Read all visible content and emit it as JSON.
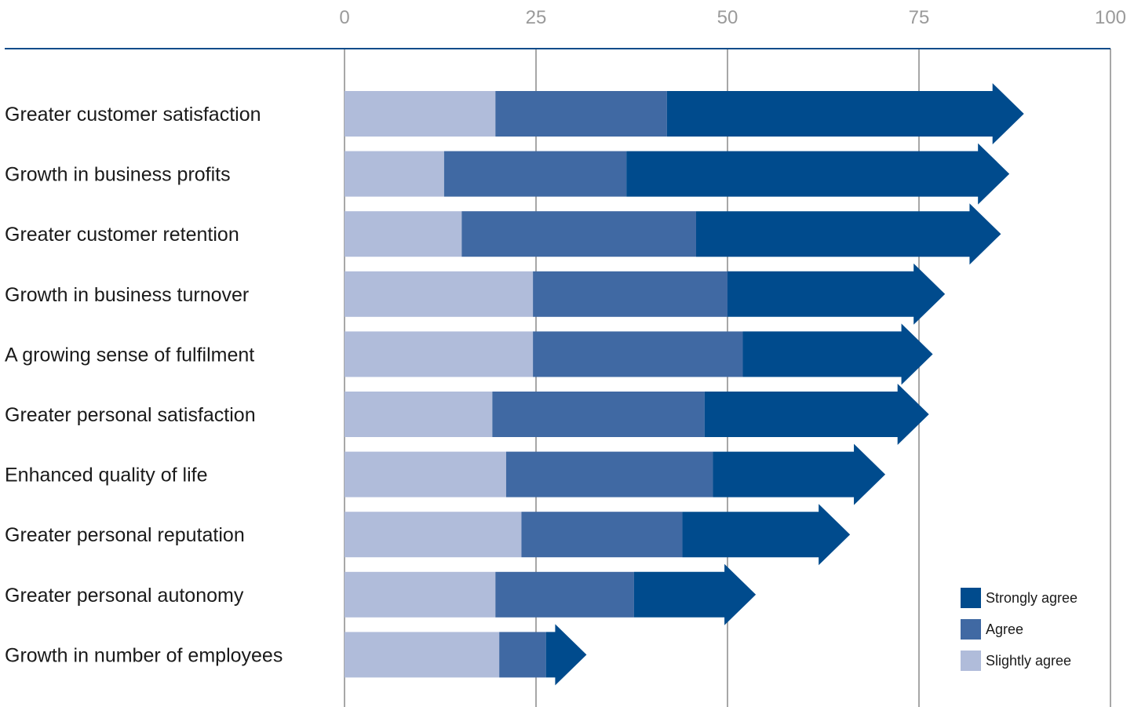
{
  "chart_data": {
    "type": "bar",
    "stacked": true,
    "orientation": "horizontal",
    "xlim": [
      0,
      100
    ],
    "x_ticks": [
      0,
      25,
      50,
      75,
      100
    ],
    "grid": true,
    "legend_position": "bottom-right",
    "categories": [
      "Greater customer satisfaction",
      "Growth in business profits",
      "Greater customer retention",
      "Growth in business turnover",
      "A growing sense of fulfilment",
      "Greater personal satisfaction",
      "Enhanced quality of life",
      "Greater personal reputation",
      "Greater personal autonomy",
      "Growth in number of employees"
    ],
    "series": [
      {
        "name": "Slightly agree",
        "color": "#b0bcda",
        "values": [
          19.7,
          13,
          15.3,
          24.6,
          24.6,
          19.3,
          21.1,
          23.1,
          19.7,
          20.2
        ]
      },
      {
        "name": "Agree",
        "color": "#4069a3",
        "values": [
          22.4,
          23.8,
          30.6,
          25.4,
          27.4,
          27.7,
          27.0,
          21.0,
          18.1,
          6.1
        ]
      },
      {
        "name": "Strongly agree",
        "color": "#004b8d",
        "values": [
          46.6,
          50.0,
          39.8,
          28.4,
          24.8,
          29.3,
          22.5,
          21.9,
          15.9,
          5.3
        ]
      }
    ],
    "legend_order": [
      "Strongly agree",
      "Agree",
      "Slightly agree"
    ]
  }
}
